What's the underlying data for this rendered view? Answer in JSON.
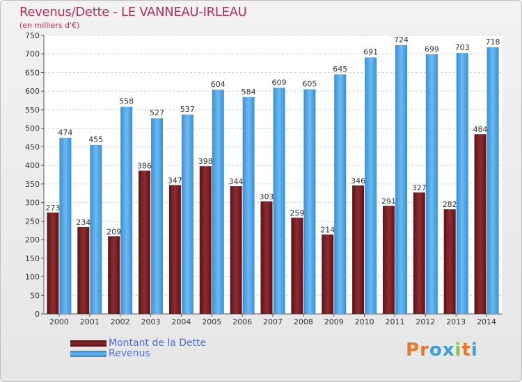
{
  "title": "Revenus/Dette - LE VANNEAU-IRLEAU",
  "subtitle": "(en milliers d'€)",
  "colors": {
    "debt": "#7a1f24",
    "revenue": "#4aa3e6",
    "title": "#b3305d",
    "legend_text": "#4a6de0"
  },
  "logo": {
    "text": "Proxiti"
  },
  "chart_data": {
    "type": "bar",
    "categories": [
      "2000",
      "2001",
      "2002",
      "2003",
      "2004",
      "2005",
      "2006",
      "2007",
      "2008",
      "2009",
      "2010",
      "2011",
      "2012",
      "2013",
      "2014"
    ],
    "series": [
      {
        "name": "Montant de la Dette",
        "values": [
          273,
          234,
          209,
          386,
          347,
          398,
          344,
          303,
          259,
          214,
          346,
          291,
          327,
          282,
          484
        ]
      },
      {
        "name": "Revenus",
        "values": [
          474,
          455,
          558,
          527,
          537,
          604,
          584,
          609,
          605,
          645,
          691,
          724,
          699,
          703,
          718
        ]
      }
    ],
    "title": "Revenus/Dette - LE VANNEAU-IRLEAU",
    "ylabel": "(en milliers d'€)",
    "ylim": [
      0,
      750
    ],
    "yticks": [
      0,
      50,
      100,
      150,
      200,
      250,
      300,
      350,
      400,
      450,
      500,
      550,
      600,
      650,
      700,
      750
    ],
    "grid": true,
    "legend": "bottom-left"
  }
}
